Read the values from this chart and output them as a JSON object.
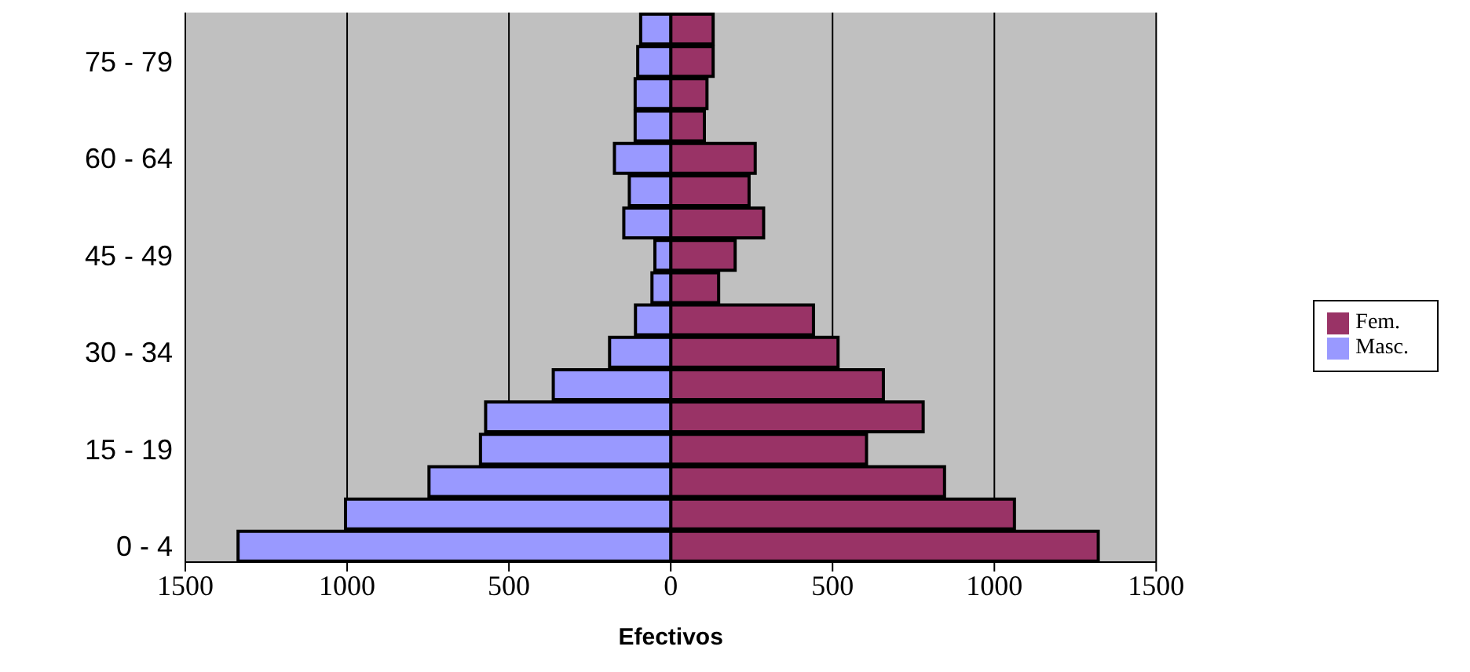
{
  "chart_data": {
    "type": "bar",
    "orientation": "horizontal",
    "stacked": true,
    "xlabel": "Efectivos",
    "categories": [
      null,
      "75 - 79",
      null,
      null,
      "60 - 64",
      null,
      null,
      "45 - 49",
      null,
      null,
      "30 - 34",
      null,
      null,
      "15 - 19",
      null,
      null,
      "0 - 4"
    ],
    "series": [
      {
        "name": "Fem.",
        "color": "#993366",
        "values": [
          131,
          131,
          112,
          104,
          261,
          242,
          287,
          199,
          148,
          441,
          517,
          657,
          780,
          605,
          846,
          1062,
          1321
        ]
      },
      {
        "name": "Masc.",
        "color": "#9999ff",
        "values": [
          -93,
          -102,
          -110,
          -110,
          -174,
          -128,
          -145,
          -49,
          -58,
          -109,
          -189,
          -363,
          -572,
          -588,
          -747,
          -1005,
          -1337
        ]
      }
    ],
    "xlim": [
      -1500,
      1500
    ],
    "xticks": [
      {
        "value": -1500,
        "label": "1500"
      },
      {
        "value": -1000,
        "label": "1000"
      },
      {
        "value": -500,
        "label": "500"
      },
      0,
      500,
      1000,
      1500
    ],
    "grid": "x",
    "legend": "right"
  }
}
